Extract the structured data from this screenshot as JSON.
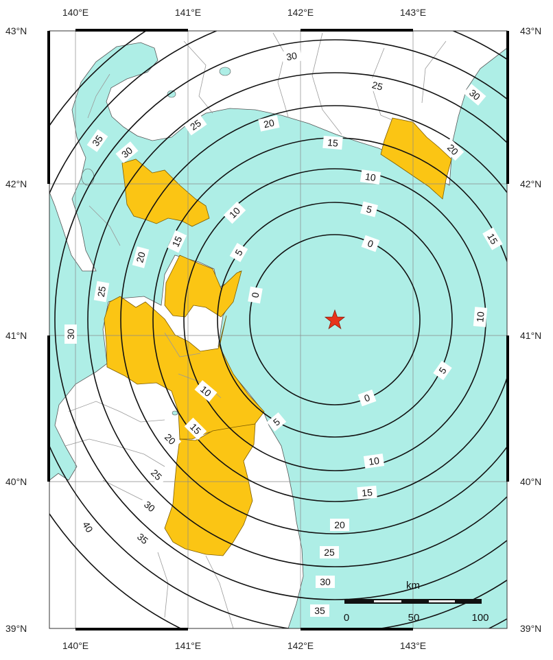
{
  "map": {
    "colors": {
      "sea": "#aeeee6",
      "land": "#ffffff",
      "highlight": "#fbc514",
      "epicenter": "#e8331b",
      "contour": "#111111",
      "border": "#999999"
    },
    "longitude_ticks": [
      "140°E",
      "141°E",
      "142°E",
      "143°E"
    ],
    "latitude_ticks": [
      "43°N",
      "42°N",
      "41°N",
      "40°N",
      "39°N"
    ],
    "epicenter_icon": "star-icon",
    "contour_labels": [
      {
        "text": "0"
      },
      {
        "text": "0"
      },
      {
        "text": "0"
      },
      {
        "text": "5"
      },
      {
        "text": "5"
      },
      {
        "text": "5"
      },
      {
        "text": "5"
      },
      {
        "text": "10"
      },
      {
        "text": "10"
      },
      {
        "text": "10"
      },
      {
        "text": "10"
      },
      {
        "text": "10"
      },
      {
        "text": "15"
      },
      {
        "text": "15"
      },
      {
        "text": "15"
      },
      {
        "text": "15"
      },
      {
        "text": "15"
      },
      {
        "text": "20"
      },
      {
        "text": "20"
      },
      {
        "text": "20"
      },
      {
        "text": "20"
      },
      {
        "text": "20"
      },
      {
        "text": "25"
      },
      {
        "text": "25"
      },
      {
        "text": "25"
      },
      {
        "text": "25"
      },
      {
        "text": "25"
      },
      {
        "text": "30"
      },
      {
        "text": "30"
      },
      {
        "text": "30"
      },
      {
        "text": "30"
      },
      {
        "text": "30"
      },
      {
        "text": "30"
      },
      {
        "text": "35"
      },
      {
        "text": "35"
      },
      {
        "text": "35"
      },
      {
        "text": "40"
      }
    ],
    "scale_bar": {
      "unit": "km",
      "labels": [
        "0",
        "50",
        "100"
      ]
    }
  }
}
